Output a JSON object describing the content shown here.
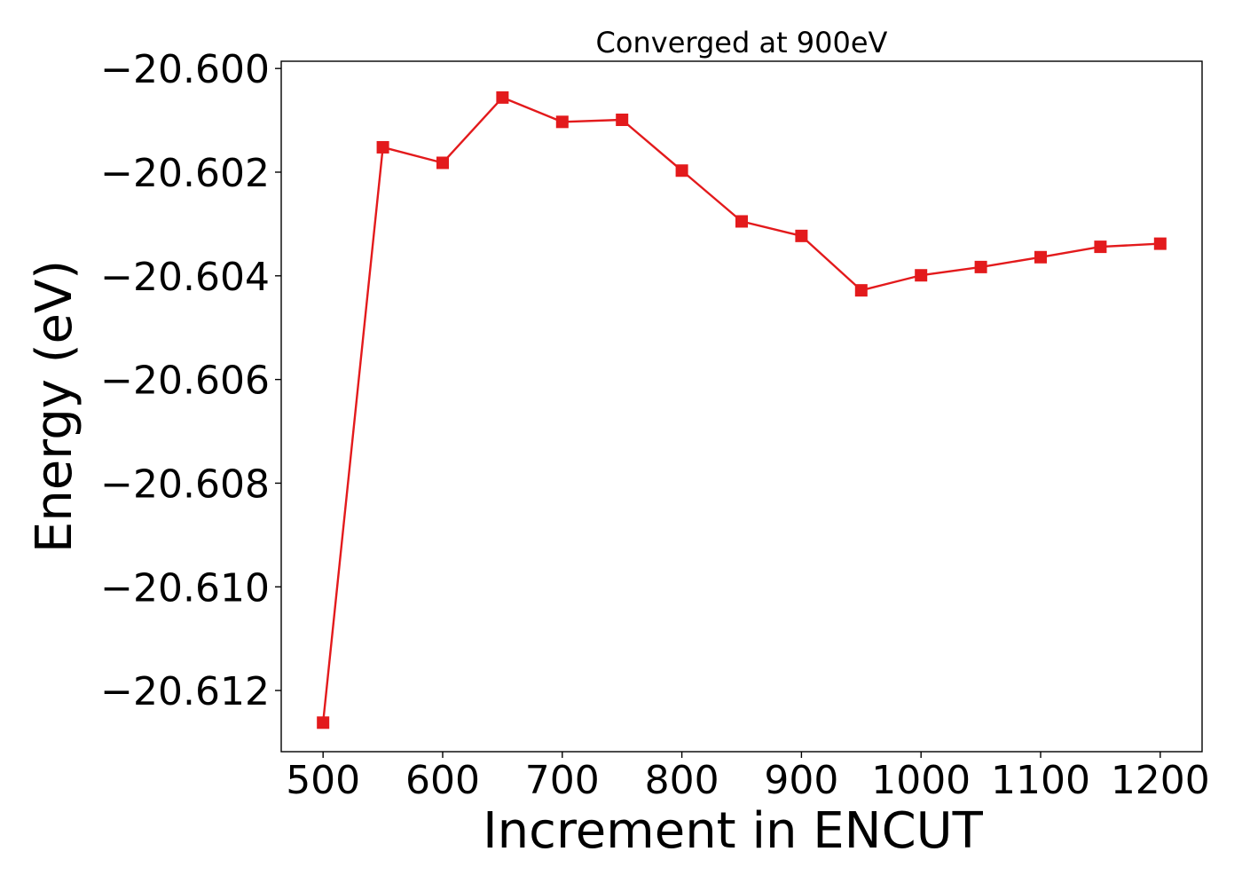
{
  "chart_data": {
    "type": "line",
    "title": "Converged at 900eV",
    "xlabel": "Increment in ENCUT",
    "ylabel": "Energy (eV)",
    "x": [
      500,
      550,
      600,
      650,
      700,
      750,
      800,
      850,
      900,
      950,
      1000,
      1050,
      1100,
      1150,
      1200
    ],
    "series": [
      {
        "values": [
          -20.61262,
          -20.60152,
          -20.60182,
          -20.60056,
          -20.60103,
          -20.60099,
          -20.60197,
          -20.60295,
          -20.60323,
          -20.60428,
          -20.60399,
          -20.60383,
          -20.60364,
          -20.60344,
          -20.60338
        ],
        "color": "#e31a1c",
        "marker": "square"
      }
    ],
    "xticks": [
      500,
      600,
      700,
      800,
      900,
      1000,
      1100,
      1200
    ],
    "xtick_labels": [
      "500",
      "600",
      "700",
      "800",
      "900",
      "1000",
      "1100",
      "1200"
    ],
    "yticks": [
      -20.6,
      -20.602,
      -20.604,
      -20.606,
      -20.608,
      -20.61,
      -20.612
    ],
    "ytick_labels": [
      "−20.600",
      "−20.602",
      "−20.604",
      "−20.606",
      "−20.608",
      "−20.610",
      "−20.612"
    ],
    "xlim": [
      465,
      1235
    ],
    "ylim": [
      -20.61318,
      -20.59986
    ],
    "grid": false,
    "legend": "none"
  }
}
